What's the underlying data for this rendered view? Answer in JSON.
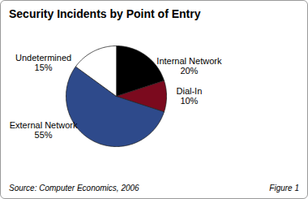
{
  "chart_data": {
    "type": "pie",
    "title": "Security Incidents by Point of Entry",
    "categories": [
      "Internal Network",
      "Dial-In",
      "External Network",
      "Undetermined"
    ],
    "values": [
      20,
      10,
      55,
      15
    ],
    "value_labels": [
      "20%",
      "10%",
      "55%",
      "15%"
    ],
    "colors": [
      "#000000",
      "#7b0a1e",
      "#2e4a8b",
      "#ffffff"
    ],
    "data_labels": true,
    "source": "Source: Computer Economics, 2006",
    "figure_label": "Figure 1"
  }
}
